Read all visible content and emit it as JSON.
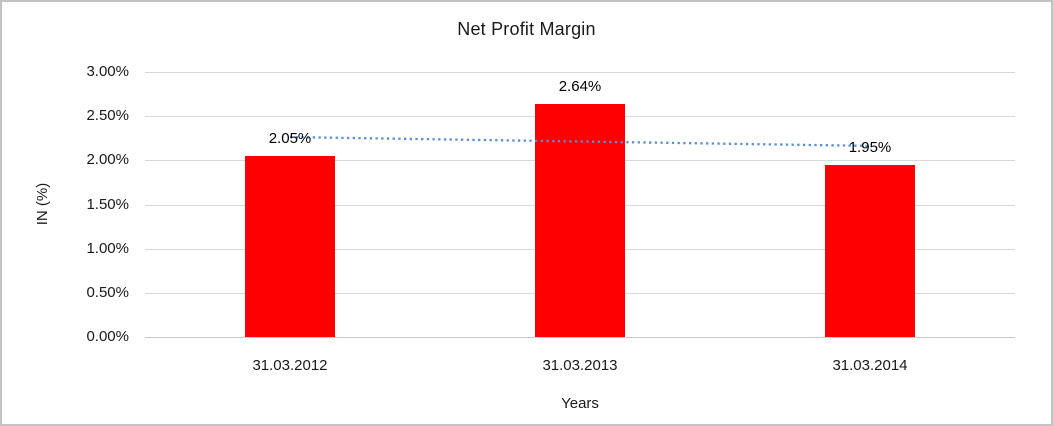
{
  "chart_data": {
    "type": "bar",
    "title": "Net Profit Margin",
    "xlabel": "Years",
    "ylabel": "IN (%)",
    "categories": [
      "31.03.2012",
      "31.03.2013",
      "31.03.2014"
    ],
    "values": [
      2.05,
      2.64,
      1.95
    ],
    "value_labels": [
      "2.05%",
      "2.64%",
      "1.95%"
    ],
    "yticks": [
      "3.00%",
      "2.50%",
      "2.00%",
      "1.50%",
      "1.00%",
      "0.50%",
      "0.00%"
    ],
    "ylim": [
      0,
      3
    ],
    "grid": "horizontal-major",
    "legend": "none",
    "bar_color": "#ff0000",
    "gridline_color": "#d9d9d9",
    "trendline": {
      "type": "linear",
      "style": "dotted",
      "color": "#5b8dd0"
    }
  }
}
